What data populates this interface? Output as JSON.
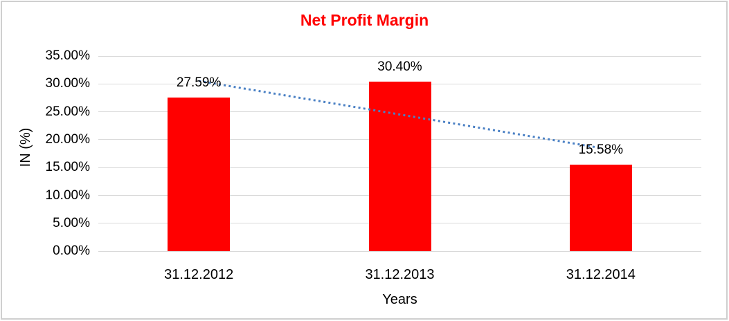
{
  "colors": {
    "title": "#ff0000",
    "bar": "#ff0000",
    "trendline": "#4a80c4",
    "gridline": "#d9d9d9",
    "axis_line": "#d9d9d9",
    "frame_border": "#cfcfcf",
    "text": "#000000",
    "background": "#ffffff"
  },
  "chart_data": {
    "type": "bar",
    "title": "Net Profit Margin",
    "categories": [
      "31.12.2012",
      "31.12.2013",
      "31.12.2014"
    ],
    "values": [
      27.59,
      30.4,
      15.58
    ],
    "data_labels": [
      "27.59%",
      "30.40%",
      "15.58%"
    ],
    "xlabel": "Years",
    "ylabel": "IN (%)",
    "ylim": [
      0,
      35
    ],
    "ytick_step": 5,
    "ytick_labels": [
      "35.00%",
      "30.00%",
      "25.00%",
      "20.00%",
      "15.00%",
      "10.00%",
      "5.00%",
      "0.00%"
    ],
    "grid": true,
    "legend_position": "none",
    "trendline": {
      "type": "linear",
      "style": "dotted",
      "endpoints_percent": [
        30.53,
        18.52
      ]
    }
  }
}
